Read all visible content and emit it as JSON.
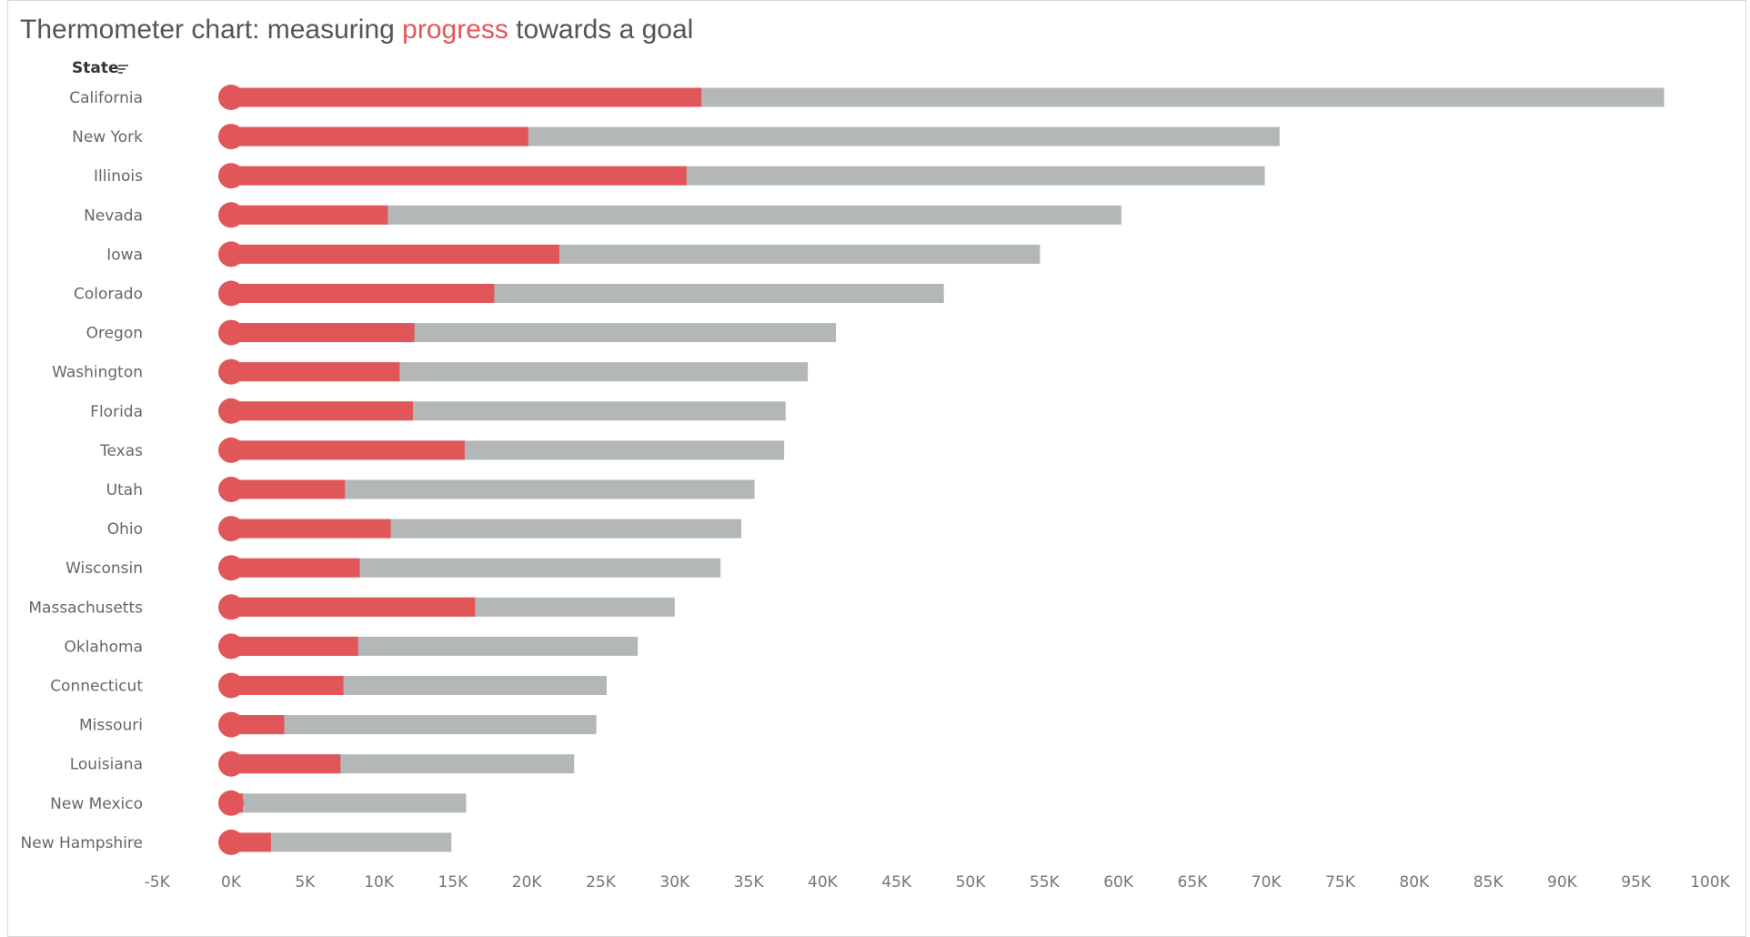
{
  "title": {
    "prefix": "Thermometer chart: measuring ",
    "highlight": "progress",
    "suffix": " towards a goal"
  },
  "colors": {
    "progress": "#e15759",
    "goal": "#b4b7b8",
    "highlight_text": "#e15759"
  },
  "row_header": {
    "label": "State",
    "icon": "sort-descending-icon"
  },
  "chart_data": {
    "type": "bar",
    "subtype": "thermometer (overlaid horizontal bars with bulb at 0)",
    "title": "Thermometer chart: measuring progress towards a goal",
    "categories": [
      "California",
      "New York",
      "Illinois",
      "Nevada",
      "Iowa",
      "Colorado",
      "Oregon",
      "Washington",
      "Florida",
      "Texas",
      "Utah",
      "Ohio",
      "Wisconsin",
      "Massachusetts",
      "Oklahoma",
      "Connecticut",
      "Missouri",
      "Louisiana",
      "New Mexico",
      "New Hampshire"
    ],
    "series": [
      {
        "role": "goal",
        "color": "#b4b7b8",
        "values": [
          96.9,
          70.9,
          69.9,
          60.2,
          54.7,
          48.2,
          40.9,
          39.0,
          37.5,
          37.4,
          35.4,
          34.5,
          33.1,
          30.0,
          27.5,
          25.4,
          24.7,
          23.2,
          15.9,
          14.9
        ]
      },
      {
        "role": "progress",
        "color": "#e15759",
        "values": [
          31.8,
          20.1,
          30.8,
          10.6,
          22.2,
          17.8,
          12.4,
          11.4,
          12.3,
          15.8,
          7.7,
          10.8,
          8.7,
          16.5,
          8.6,
          7.6,
          3.6,
          7.4,
          0.8,
          2.7
        ]
      }
    ],
    "value_unit": "K",
    "xlim": [
      -5,
      100
    ],
    "xticks": [
      -5,
      0,
      5,
      10,
      15,
      20,
      25,
      30,
      35,
      40,
      45,
      50,
      55,
      60,
      65,
      70,
      75,
      80,
      85,
      90,
      95,
      100
    ],
    "xtick_labels": [
      "-5K",
      "0K",
      "5K",
      "10K",
      "15K",
      "20K",
      "25K",
      "30K",
      "35K",
      "40K",
      "45K",
      "50K",
      "55K",
      "60K",
      "65K",
      "70K",
      "75K",
      "80K",
      "85K",
      "90K",
      "95K",
      "100K"
    ],
    "xlabel": "",
    "ylabel": "State",
    "grid": false,
    "legend": "none"
  }
}
